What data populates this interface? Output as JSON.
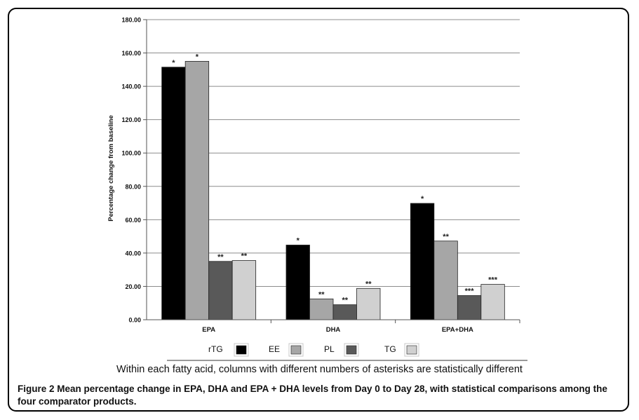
{
  "chart_data": {
    "type": "bar",
    "categories": [
      "EPA",
      "DHA",
      "EPA+DHA"
    ],
    "series": [
      {
        "name": "rTG",
        "color": "#000000",
        "values": [
          151.5,
          44.8,
          69.8
        ],
        "marks": [
          "*",
          "*",
          "*"
        ]
      },
      {
        "name": "EE",
        "color": "#a6a6a6",
        "values": [
          155.0,
          12.5,
          47.2
        ],
        "marks": [
          "*",
          "**",
          "**"
        ]
      },
      {
        "name": "PL",
        "color": "#595959",
        "values": [
          35.0,
          9.0,
          14.5
        ],
        "marks": [
          "**",
          "**",
          "***"
        ]
      },
      {
        "name": "TG",
        "color": "#d0d0d0",
        "values": [
          35.5,
          18.8,
          21.2
        ],
        "marks": [
          "**",
          "**",
          "***"
        ]
      }
    ],
    "ylabel": "Percentage change from baseline",
    "xlabel": "",
    "ylim": [
      0,
      180
    ],
    "yticks": [
      "0.00",
      "20.00",
      "40.00",
      "60.00",
      "80.00",
      "100.00",
      "120.00",
      "140.00",
      "160.00",
      "180.00"
    ],
    "grid": true,
    "legend_position": "bottom"
  },
  "note": "Within each fatty acid, columns with different numbers of asterisks are statistically different",
  "caption": {
    "figure_label": "Figure 2",
    "text": "Mean percentage change in EPA, DHA and EPA + DHA levels from Day 0 to Day 28, with statistical comparisons among the four comparator products."
  }
}
